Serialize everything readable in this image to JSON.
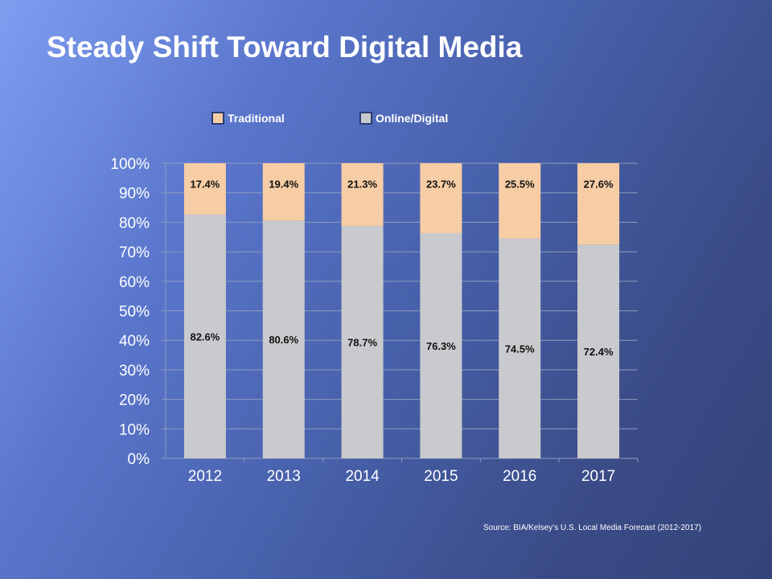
{
  "slide": {
    "title": "Steady Shift Toward Digital Media",
    "source": "Source: BIA/Kelsey’s U.S. Local Media Forecast (2012-2017)"
  },
  "colors": {
    "traditional": "#f6cda5",
    "online_digital": "#c9cacd",
    "grid": "#8e9bbd",
    "axis_text": "#ffffff",
    "data_label": "#111111"
  },
  "chart_data": {
    "type": "bar",
    "stacked": true,
    "percent": true,
    "title": "",
    "xlabel": "",
    "ylabel": "",
    "categories": [
      "2012",
      "2013",
      "2014",
      "2015",
      "2016",
      "2017"
    ],
    "series": [
      {
        "name": "Online/Digital",
        "values": [
          82.6,
          80.6,
          78.7,
          76.3,
          74.5,
          72.4
        ],
        "labels": [
          "82.6%",
          "80.6%",
          "78.7%",
          "76.3%",
          "74.5%",
          "72.4%"
        ],
        "color": "#c9cacd"
      },
      {
        "name": "Traditional",
        "values": [
          17.4,
          19.4,
          21.3,
          23.7,
          25.5,
          27.6
        ],
        "labels": [
          "17.4%",
          "19.4%",
          "21.3%",
          "23.7%",
          "25.5%",
          "27.6%"
        ],
        "color": "#f6cda5"
      }
    ],
    "ylim": [
      0,
      100
    ],
    "yticks": [
      "0%",
      "10%",
      "20%",
      "30%",
      "40%",
      "50%",
      "60%",
      "70%",
      "80%",
      "90%",
      "100%"
    ],
    "legend": {
      "position": "top",
      "entries": [
        {
          "name": "Traditional",
          "color": "#f6cda5"
        },
        {
          "name": "Online/Digital",
          "color": "#c9cacd"
        }
      ]
    },
    "grid": true
  }
}
